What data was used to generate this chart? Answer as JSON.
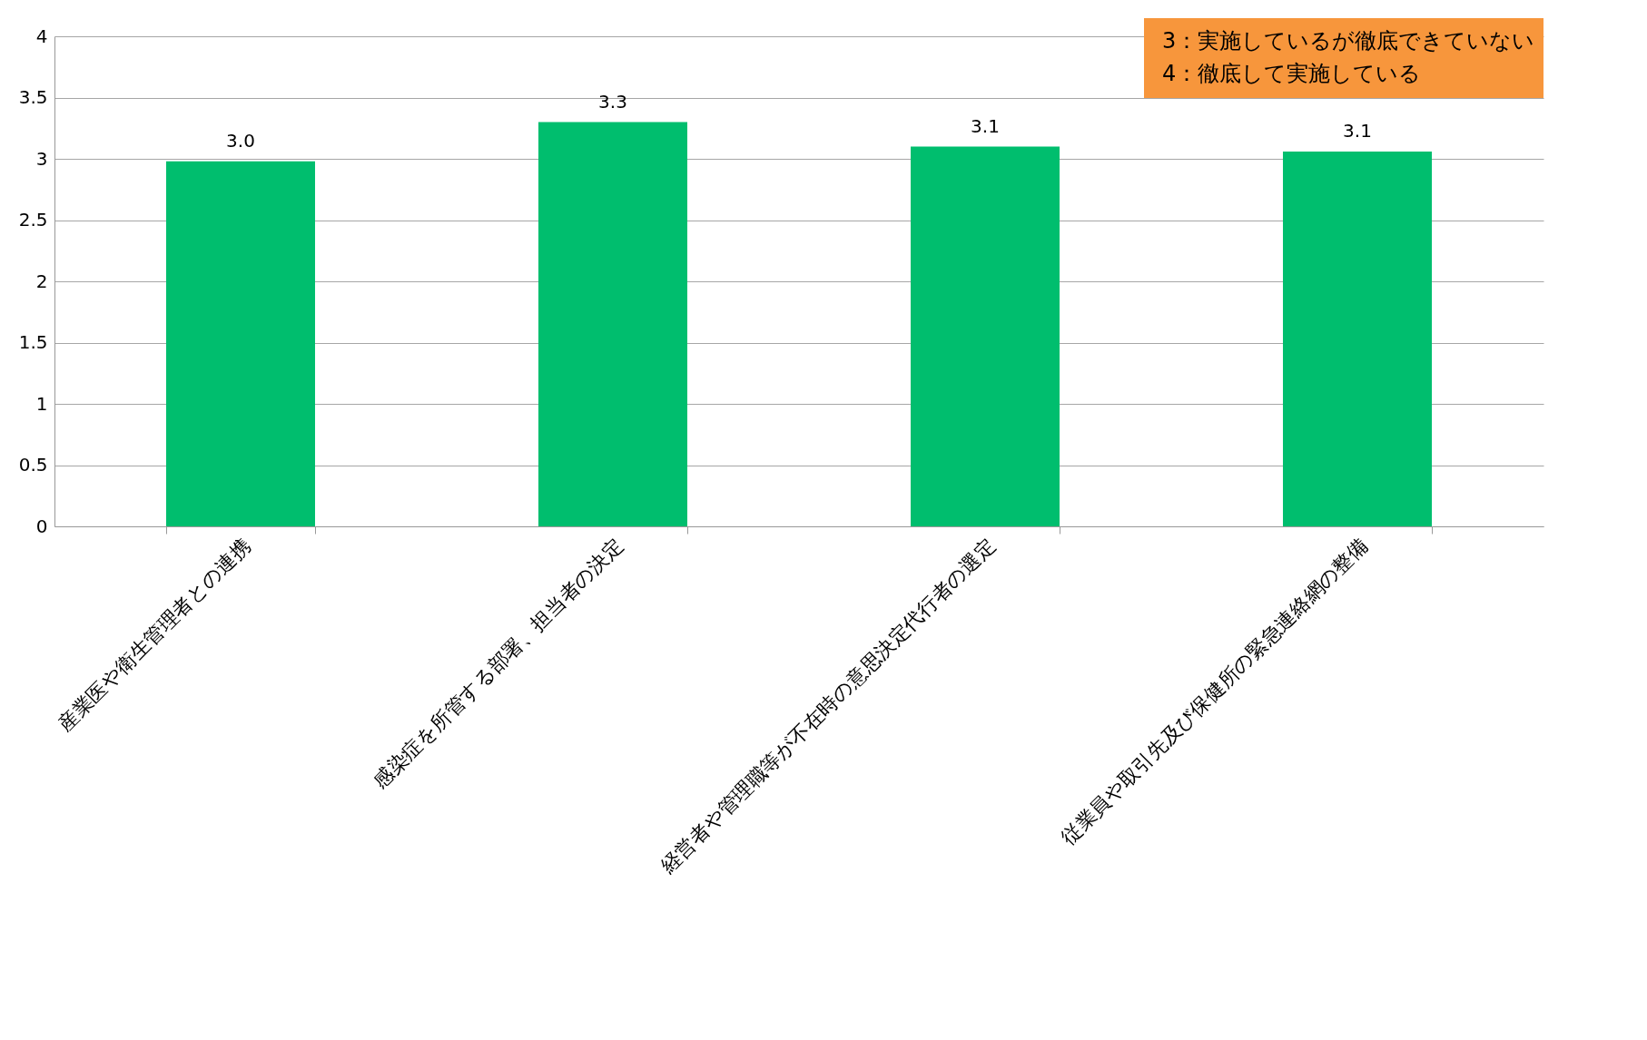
{
  "chart_data": {
    "type": "bar",
    "categories": [
      "産業医や衛生管理者との連携",
      "感染症を所管する部署、担当者の決定",
      "経営者や管理職等が不在時の意思決定代行者の選定",
      "従業員や取引先及び保健所の緊急連絡網の整備"
    ],
    "values": [
      2.98,
      3.3,
      3.1,
      3.06
    ],
    "value_labels": [
      "3.0",
      "3.3",
      "3.1",
      "3.1"
    ],
    "color": "#00be6e",
    "ylim": [
      0,
      4
    ],
    "yticks": [
      0,
      0.5,
      1,
      1.5,
      2,
      2.5,
      3,
      3.5,
      4
    ],
    "grid": "y",
    "annotations": [
      "3：実施しているが徹底できていない",
      "4：徹底して実施している"
    ]
  }
}
